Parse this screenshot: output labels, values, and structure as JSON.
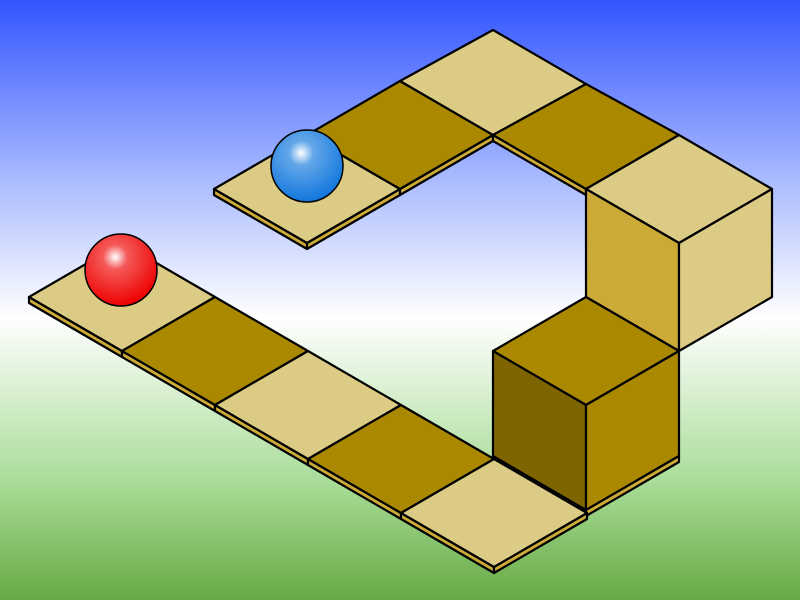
{
  "scene": {
    "sky_colors": [
      "#3355ff",
      "#aabbff",
      "#ffffff",
      "#aadd99",
      "#66aa44"
    ]
  },
  "palette": {
    "light_top": "#dccb84",
    "dark_top": "#aa8800",
    "light_side": "#cbaa38",
    "dark_side_front": "#aa8800",
    "dark_side_shade": "#7f6500",
    "edge_strip": "#cbaa38",
    "outline": "#000000"
  },
  "tiles": [
    {
      "id": "tile-01",
      "shade": "light"
    },
    {
      "id": "tile-02",
      "shade": "dark"
    },
    {
      "id": "tile-03",
      "shade": "light"
    },
    {
      "id": "tile-04",
      "shade": "dark"
    },
    {
      "id": "tile-05",
      "shade": "light"
    },
    {
      "id": "tile-06",
      "shade": "light"
    },
    {
      "id": "tile-07",
      "shade": "dark"
    },
    {
      "id": "tile-08",
      "shade": "light"
    },
    {
      "id": "tile-09",
      "shade": "dark"
    }
  ],
  "blocks": [
    {
      "id": "lower-block",
      "shade": "dark"
    },
    {
      "id": "upper-block",
      "shade": "light"
    }
  ],
  "balls": [
    {
      "id": "red-ball",
      "color": "#ee0000",
      "highlight": "#ffffff"
    },
    {
      "id": "blue-ball",
      "color": "#1177dd",
      "highlight": "#ffffff"
    }
  ]
}
